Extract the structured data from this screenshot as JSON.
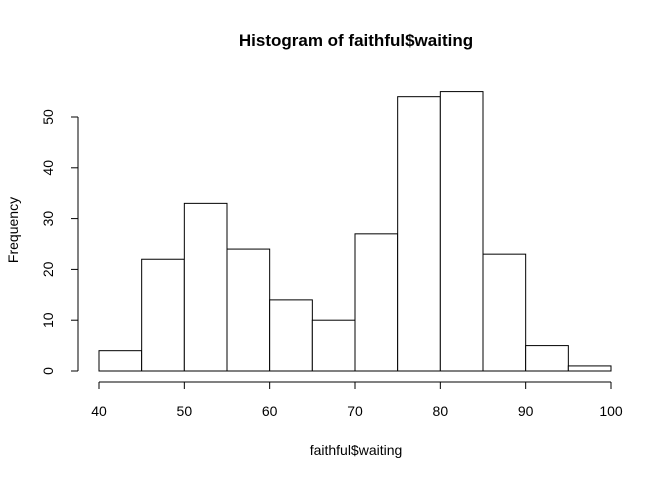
{
  "chart_data": {
    "type": "bar",
    "title": "Histogram of faithful$waiting",
    "xlabel": "faithful$waiting",
    "ylabel": "Frequency",
    "bins": [
      {
        "start": 40,
        "end": 45,
        "count": 4
      },
      {
        "start": 45,
        "end": 50,
        "count": 22
      },
      {
        "start": 50,
        "end": 55,
        "count": 33
      },
      {
        "start": 55,
        "end": 60,
        "count": 24
      },
      {
        "start": 60,
        "end": 65,
        "count": 14
      },
      {
        "start": 65,
        "end": 70,
        "count": 10
      },
      {
        "start": 70,
        "end": 75,
        "count": 27
      },
      {
        "start": 75,
        "end": 80,
        "count": 54
      },
      {
        "start": 80,
        "end": 85,
        "count": 55
      },
      {
        "start": 85,
        "end": 90,
        "count": 23
      },
      {
        "start": 90,
        "end": 95,
        "count": 5
      },
      {
        "start": 95,
        "end": 100,
        "count": 1
      }
    ],
    "xlim": [
      40,
      100
    ],
    "ylim": [
      0,
      55
    ],
    "xticks": [
      40,
      50,
      60,
      70,
      80,
      90,
      100
    ],
    "yticks": [
      0,
      10,
      20,
      30,
      40,
      50
    ],
    "grid": false,
    "bar_fill": "#ffffff",
    "bar_stroke": "#000000"
  }
}
